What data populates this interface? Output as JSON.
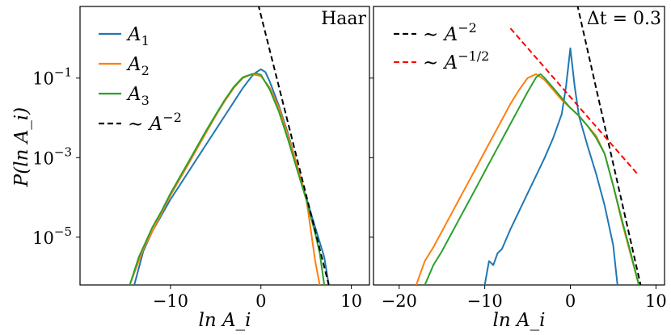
{
  "ylabel": "P(ln A_i)",
  "chart_data": [
    {
      "type": "line",
      "title": "Haar",
      "xlabel": "ln A_i",
      "ylabel": "P(ln A_i)",
      "xlim": [
        -20,
        12
      ],
      "ylim_log10": [
        -6.2,
        0.8
      ],
      "x_ticks": [
        -10,
        0,
        10
      ],
      "x_tick_labels": [
        "−10",
        "0",
        "10"
      ],
      "y_ticks_log10": [
        -1,
        -3,
        -5
      ],
      "y_tick_labels": [
        "10",
        "10",
        "10"
      ],
      "y_tick_exponents": [
        "−1",
        "−3",
        "−5"
      ],
      "legend": {
        "placement": "upper-left",
        "entries": [
          {
            "series": "A1",
            "label": "A",
            "sub": "1",
            "color": "#1f77b4",
            "style": "solid"
          },
          {
            "series": "A2",
            "label": "A",
            "sub": "2",
            "color": "#ff7f0e",
            "style": "solid"
          },
          {
            "series": "A3",
            "label": "A",
            "sub": "3",
            "color": "#2ca02c",
            "style": "solid"
          },
          {
            "series": "pow2",
            "label": "∼ A",
            "sup": "−2",
            "color": "#000000",
            "style": "dashed"
          }
        ]
      },
      "series": [
        {
          "name": "A1",
          "color": "#1f77b4",
          "dashed": false,
          "x": [
            -14,
            -13,
            -12,
            -11,
            -10,
            -9,
            -8,
            -7,
            -6,
            -5,
            -4,
            -3,
            -2,
            -1,
            -0.5,
            0,
            0.5,
            1,
            2,
            3,
            4,
            5,
            6,
            7,
            7.5
          ],
          "log10y": [
            -6.2,
            -5.35,
            -4.85,
            -4.45,
            -4.05,
            -3.7,
            -3.35,
            -3.0,
            -2.65,
            -2.3,
            -1.95,
            -1.6,
            -1.25,
            -0.95,
            -0.85,
            -0.78,
            -0.85,
            -1.1,
            -1.7,
            -2.4,
            -3.2,
            -4.0,
            -4.75,
            -5.5,
            -6.2
          ]
        },
        {
          "name": "A2",
          "color": "#ff7f0e",
          "dashed": false,
          "x": [
            -14.5,
            -13.5,
            -13,
            -12,
            -11,
            -10,
            -9,
            -8,
            -7,
            -6,
            -5,
            -4,
            -3,
            -2,
            -1,
            0,
            1,
            2,
            3,
            4,
            5,
            5.5,
            6,
            6.5
          ],
          "log10y": [
            -6.2,
            -5.6,
            -5.3,
            -4.85,
            -4.4,
            -3.95,
            -3.55,
            -3.15,
            -2.75,
            -2.35,
            -1.95,
            -1.58,
            -1.25,
            -1.0,
            -0.9,
            -0.95,
            -1.25,
            -1.75,
            -2.45,
            -3.2,
            -4.0,
            -4.8,
            -5.6,
            -6.2
          ]
        },
        {
          "name": "A3",
          "color": "#2ca02c",
          "dashed": false,
          "x": [
            -14.5,
            -13.5,
            -12.5,
            -12,
            -11,
            -10,
            -9,
            -8,
            -7,
            -6,
            -5,
            -4,
            -3,
            -2,
            -1,
            -0.5,
            0,
            1,
            2,
            3,
            4,
            5,
            6,
            6.5,
            7
          ],
          "log10y": [
            -6.2,
            -5.5,
            -5.0,
            -4.75,
            -4.35,
            -3.9,
            -3.5,
            -3.1,
            -2.7,
            -2.3,
            -1.92,
            -1.55,
            -1.22,
            -0.98,
            -0.9,
            -0.88,
            -0.92,
            -1.3,
            -1.85,
            -2.55,
            -3.3,
            -4.05,
            -4.9,
            -5.4,
            -6.2
          ]
        },
        {
          "name": "pow2",
          "color": "#000000",
          "dashed": true,
          "x": [
            -0.3,
            7.5
          ],
          "log10y": [
            0.85,
            -6.2
          ]
        }
      ]
    },
    {
      "type": "line",
      "title": "Δt = 0.3",
      "xlabel": "ln A_i",
      "xlim": [
        -23,
        11
      ],
      "ylim_log10": [
        -6.2,
        0.8
      ],
      "x_ticks": [
        -20,
        -10,
        0,
        10
      ],
      "x_tick_labels": [
        "−20",
        "−10",
        "0",
        "10"
      ],
      "legend": {
        "placement": "upper-left",
        "entries": [
          {
            "series": "pow2",
            "label": "∼ A",
            "sup": "−2",
            "color": "#000000",
            "style": "dashed"
          },
          {
            "series": "pow05",
            "label": "∼ A",
            "sup": "−1/2",
            "color": "#ff0000",
            "style": "dashed"
          }
        ]
      },
      "series": [
        {
          "name": "A1",
          "color": "#1f77b4",
          "dashed": false,
          "x": [
            -10,
            -9.5,
            -9,
            -8.5,
            -8,
            -7,
            -6,
            -5,
            -4,
            -3,
            -2,
            -1,
            -0.5,
            0,
            0.5,
            1,
            2,
            3,
            4,
            5,
            5.5
          ],
          "log10y": [
            -6.2,
            -5.6,
            -5.7,
            -5.4,
            -5.3,
            -4.8,
            -4.35,
            -3.9,
            -3.45,
            -3.0,
            -2.5,
            -1.9,
            -1.2,
            -0.25,
            -1.2,
            -1.95,
            -2.7,
            -3.4,
            -4.2,
            -5.2,
            -6.2
          ]
        },
        {
          "name": "A2",
          "color": "#ff7f0e",
          "dashed": false,
          "x": [
            -18,
            -17,
            -16,
            -15,
            -14,
            -13,
            -12,
            -11,
            -10,
            -9,
            -8,
            -7,
            -6,
            -5,
            -4,
            -3,
            -2,
            -1,
            0,
            1,
            2,
            3,
            4,
            5,
            6,
            7,
            8
          ],
          "log10y": [
            -6.2,
            -5.6,
            -5.25,
            -4.85,
            -4.45,
            -4.05,
            -3.65,
            -3.25,
            -2.85,
            -2.45,
            -2.05,
            -1.65,
            -1.3,
            -1.0,
            -0.9,
            -1.05,
            -1.3,
            -1.55,
            -1.75,
            -1.95,
            -2.2,
            -2.45,
            -2.9,
            -3.7,
            -4.6,
            -5.4,
            -6.2
          ]
        },
        {
          "name": "A3",
          "color": "#2ca02c",
          "dashed": false,
          "x": [
            -17,
            -16,
            -15,
            -14,
            -13,
            -12,
            -11,
            -10,
            -9,
            -8,
            -7,
            -6,
            -5,
            -4,
            -3.5,
            -3,
            -2,
            -1,
            0,
            1,
            2,
            3,
            4,
            5,
            6,
            7,
            8
          ],
          "log10y": [
            -6.2,
            -5.7,
            -5.35,
            -4.95,
            -4.55,
            -4.15,
            -3.75,
            -3.35,
            -2.95,
            -2.55,
            -2.15,
            -1.75,
            -1.35,
            -0.98,
            -0.9,
            -1.0,
            -1.25,
            -1.5,
            -1.75,
            -1.95,
            -2.2,
            -2.5,
            -2.9,
            -3.7,
            -4.55,
            -5.35,
            -6.2
          ]
        },
        {
          "name": "pow2",
          "color": "#000000",
          "dashed": true,
          "x": [
            0.8,
            8.2
          ],
          "log10y": [
            0.85,
            -6.2
          ]
        },
        {
          "name": "pow05",
          "color": "#ff0000",
          "dashed": true,
          "x": [
            -7,
            8
          ],
          "log10y": [
            0.25,
            -3.45
          ]
        }
      ]
    }
  ]
}
